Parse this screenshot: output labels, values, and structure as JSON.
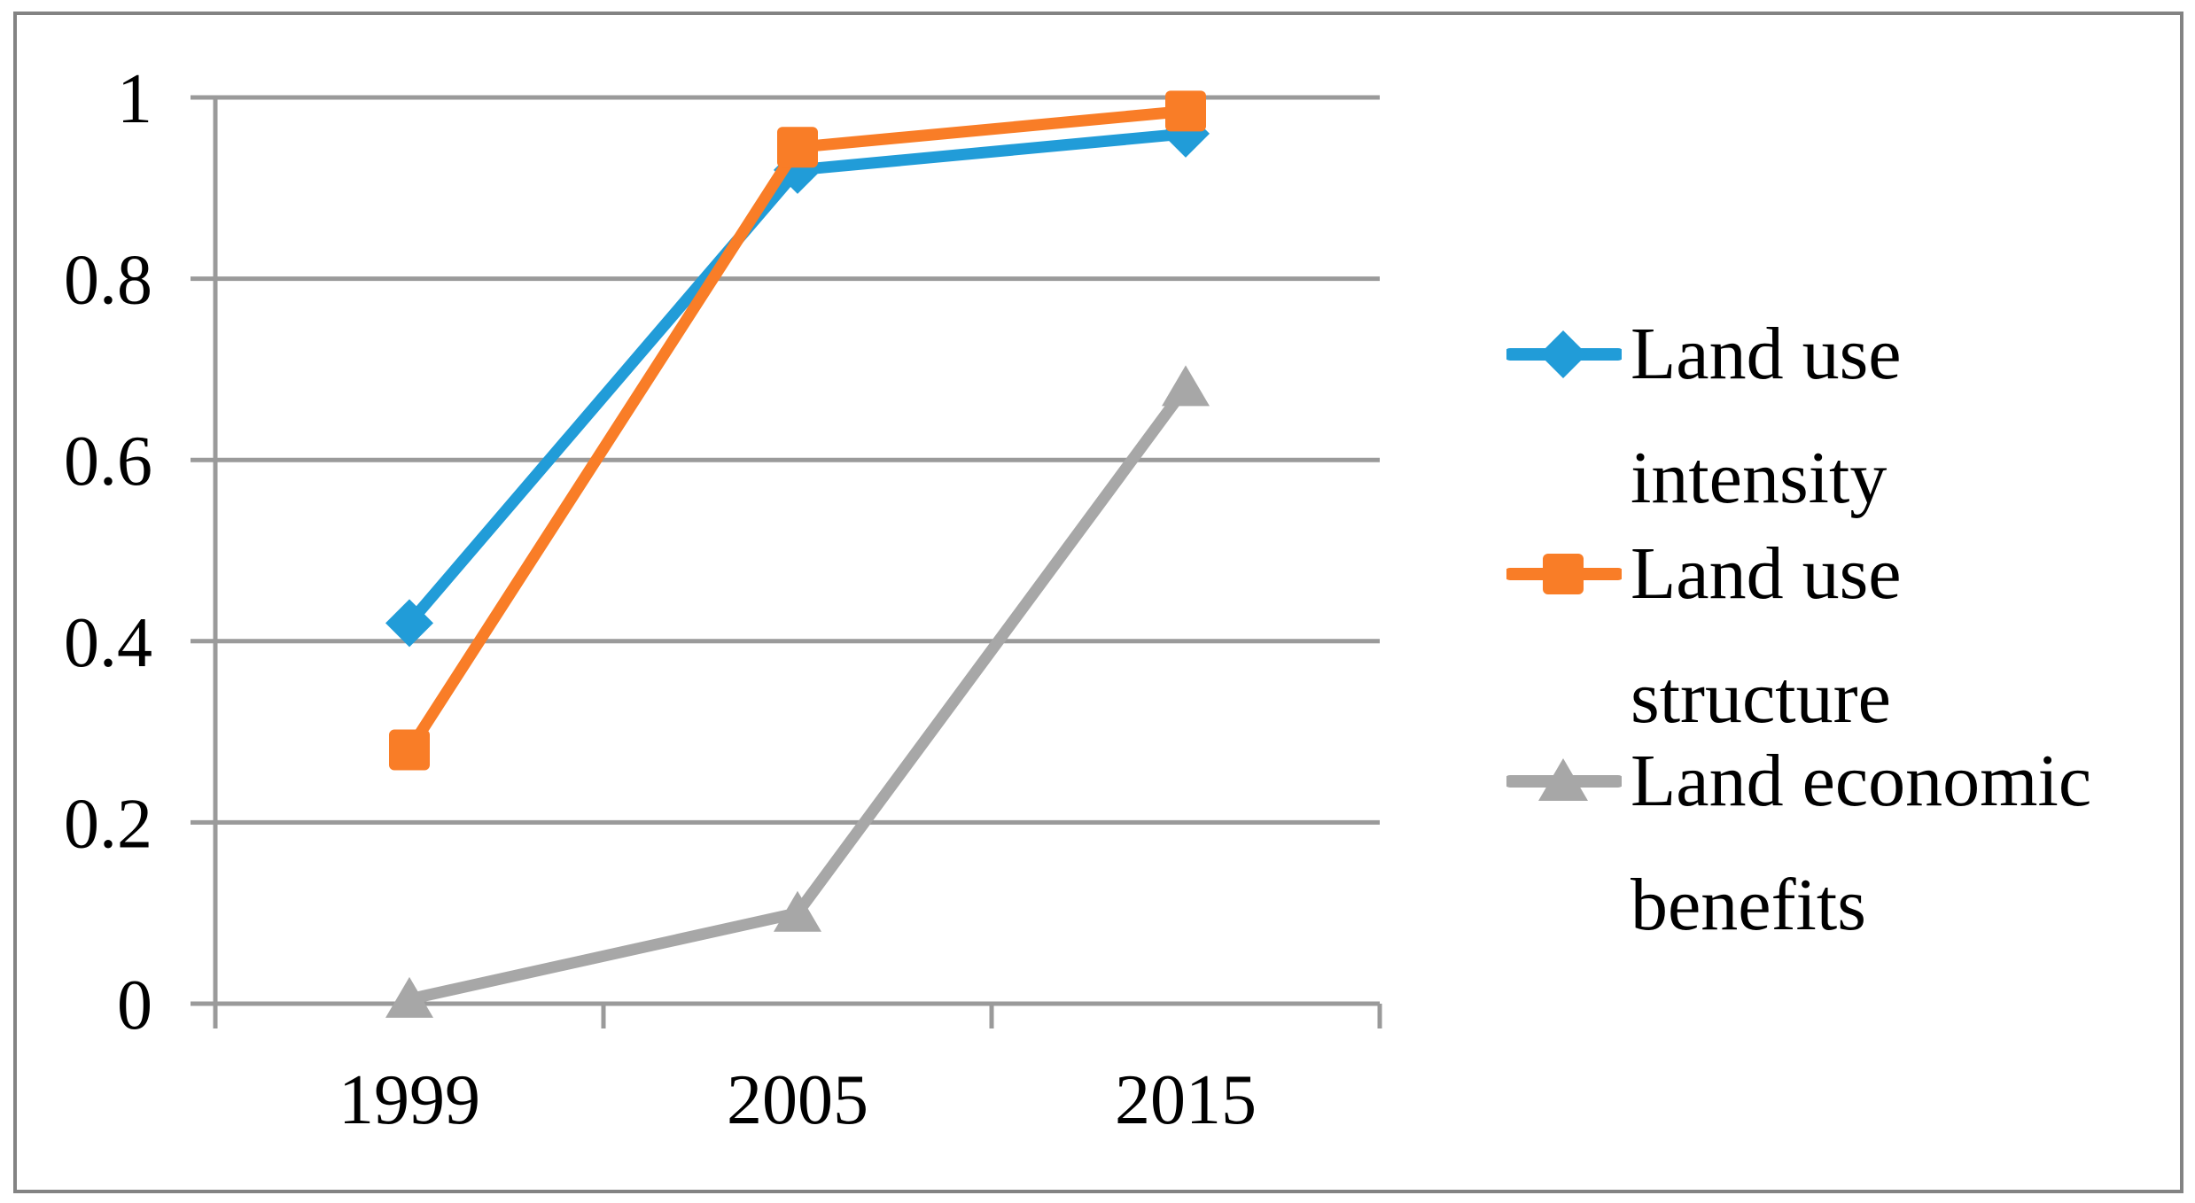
{
  "figure": {
    "background": "#ffffff",
    "border_color": "#838383",
    "text_color": "#000000",
    "axis_color": "#9a9a9a"
  },
  "chart_data": {
    "type": "line",
    "categories": [
      "1999",
      "2005",
      "2015"
    ],
    "series": [
      {
        "name": "Land use intensity",
        "marker": "diamond",
        "color": "#219cd8",
        "values": [
          0.42,
          0.92,
          0.96
        ]
      },
      {
        "name": "Land use structure",
        "marker": "square",
        "color": "#f97d27",
        "values": [
          0.28,
          0.945,
          0.985
        ]
      },
      {
        "name": "Land economic benefits",
        "marker": "triangle",
        "color": "#a7a7a7",
        "values": [
          0.005,
          0.1,
          0.68
        ]
      }
    ],
    "title": "",
    "xlabel": "",
    "ylabel": "",
    "ylim": [
      0,
      1
    ],
    "y_ticks": [
      0,
      0.2,
      0.4,
      0.6,
      0.8,
      1
    ],
    "y_tick_labels": [
      "0",
      "0.2",
      "0.4",
      "0.6",
      "0.8",
      "1"
    ],
    "grid": true,
    "legend_position": "right"
  },
  "legend": {
    "items": [
      {
        "lines": [
          "Land use",
          "intensity"
        ]
      },
      {
        "lines": [
          "Land use",
          "structure"
        ]
      },
      {
        "lines": [
          "Land economic",
          "benefits"
        ]
      }
    ]
  }
}
